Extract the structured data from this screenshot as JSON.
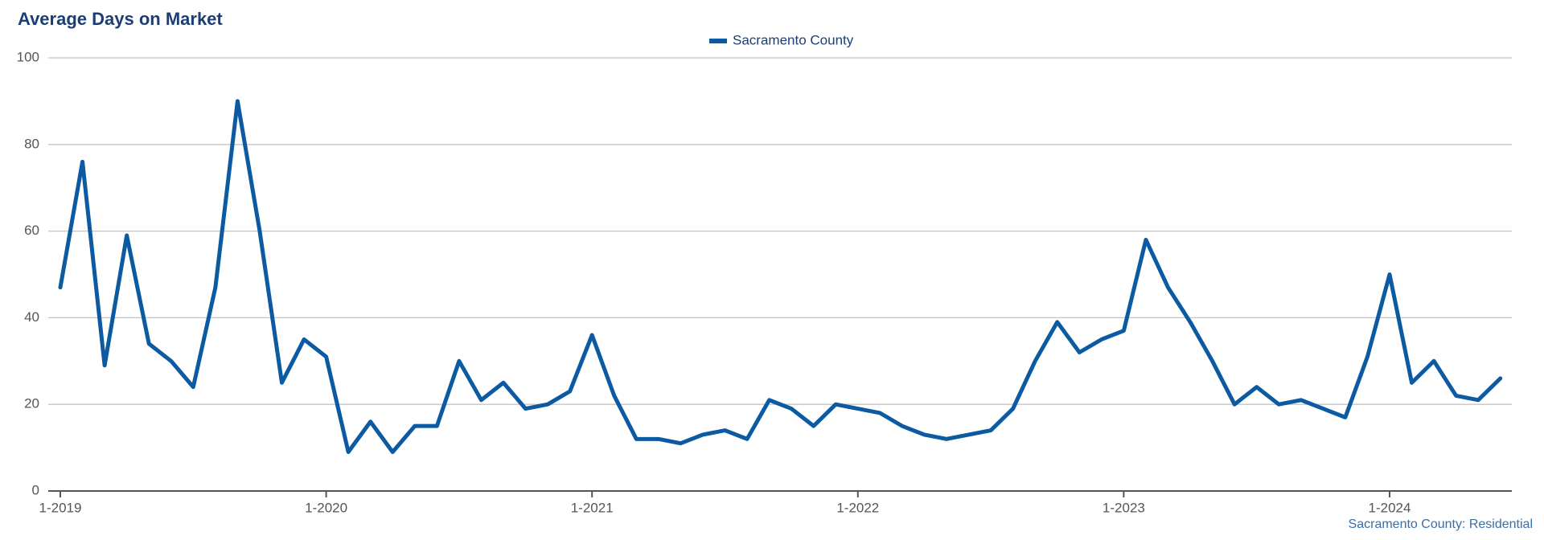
{
  "chart_data": {
    "type": "line",
    "title": "Average Days on Market",
    "categories": [
      "1-2019",
      null,
      null,
      null,
      null,
      null,
      null,
      null,
      null,
      null,
      null,
      null,
      "1-2020",
      null,
      null,
      null,
      null,
      null,
      null,
      null,
      null,
      null,
      null,
      null,
      "1-2021",
      null,
      null,
      null,
      null,
      null,
      null,
      null,
      null,
      null,
      null,
      null,
      "1-2022",
      null,
      null,
      null,
      null,
      null,
      null,
      null,
      null,
      null,
      null,
      null,
      "1-2023",
      null,
      null,
      null,
      null,
      null,
      null,
      null,
      null,
      null,
      null,
      null,
      "1-2024",
      null,
      null,
      null,
      null,
      null
    ],
    "series": [
      {
        "name": "Sacramento County",
        "color": "#0b5aa2",
        "values": [
          47,
          76,
          29,
          59,
          34,
          30,
          24,
          47,
          90,
          60,
          25,
          35,
          31,
          9,
          16,
          9,
          15,
          15,
          30,
          21,
          25,
          19,
          20,
          23,
          36,
          22,
          12,
          12,
          11,
          13,
          14,
          12,
          21,
          19,
          15,
          20,
          19,
          18,
          15,
          13,
          12,
          13,
          14,
          19,
          30,
          39,
          32,
          35,
          37,
          58,
          47,
          39,
          30,
          20,
          24,
          20,
          21,
          19,
          17,
          31,
          50,
          25,
          30,
          22,
          21,
          26
        ]
      }
    ],
    "ylim": [
      0,
      100
    ],
    "yticks": [
      0,
      20,
      40,
      60,
      80,
      100
    ],
    "grid": true,
    "credit": "Sacramento County: Residential"
  }
}
